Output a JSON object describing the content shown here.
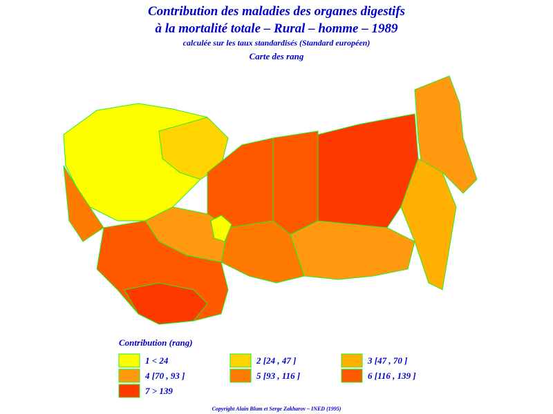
{
  "header": {
    "title_line1": "Contribution des maladies des organes digestifs",
    "title_line2": "à la mortalité totale  –  Rural  –  homme  –  1989",
    "subtitle": "calculée sur les taux standardisés (Standard européen)",
    "map_title": "Carte des rang"
  },
  "legend": {
    "title": "Contribution (rang)",
    "items": [
      {
        "label": "1  <  24",
        "color": "#ffff00"
      },
      {
        "label": "2 [24 , 47 ]",
        "color": "#ffd400"
      },
      {
        "label": "3 [47 , 70 ]",
        "color": "#ffb000"
      },
      {
        "label": "4 [70 , 93 ]",
        "color": "#ff9a10"
      },
      {
        "label": "5 [93 , 116 ]",
        "color": "#ff7a00"
      },
      {
        "label": "6 [116 , 139 ]",
        "color": "#ff5a00"
      },
      {
        "label": "7  >  139",
        "color": "#ff3a00"
      }
    ]
  },
  "footer": {
    "copyright": "Copyright Alain Blum et Serge Zakharov  –  INED (1995)"
  }
}
